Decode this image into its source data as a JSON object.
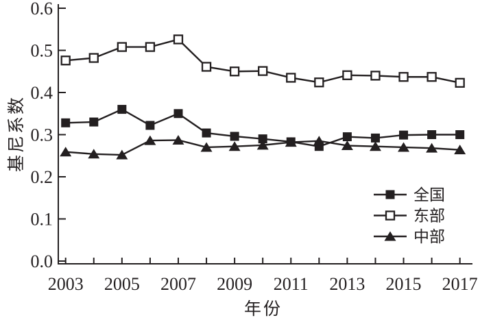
{
  "figure": {
    "background": "#ffffff",
    "line_color": "#231f20",
    "marker_fill": "#231f20",
    "open_marker_fill": "#ffffff"
  },
  "chart_data": {
    "type": "line",
    "title": "",
    "xlabel": "年份",
    "ylabel": "基尼系数",
    "xlim": [
      2003,
      2017
    ],
    "ylim": [
      0.0,
      0.6
    ],
    "grid": false,
    "legend_position": "inside lower-right",
    "x": [
      2003,
      2004,
      2005,
      2006,
      2007,
      2008,
      2009,
      2010,
      2011,
      2012,
      2013,
      2014,
      2015,
      2016,
      2017
    ],
    "xtick_label_years": [
      2003,
      2005,
      2007,
      2009,
      2011,
      2013,
      2015,
      2017
    ],
    "xtick_labels": [
      "2003",
      "2005",
      "2007",
      "2009",
      "2011",
      "2013",
      "2015",
      "2017"
    ],
    "yticks": [
      0.0,
      0.1,
      0.2,
      0.3,
      0.4,
      0.5,
      0.6
    ],
    "ytick_labels": [
      "0.0",
      "0.1",
      "0.2",
      "0.3",
      "0.4",
      "0.5",
      "0.6"
    ],
    "series": [
      {
        "id": "national",
        "name": "全国",
        "marker": "filled-square",
        "values": [
          0.328,
          0.33,
          0.36,
          0.322,
          0.35,
          0.304,
          0.296,
          0.29,
          0.283,
          0.272,
          0.295,
          0.292,
          0.299,
          0.3,
          0.3
        ]
      },
      {
        "id": "east",
        "name": "东部",
        "marker": "open-square",
        "values": [
          0.476,
          0.482,
          0.508,
          0.508,
          0.526,
          0.461,
          0.45,
          0.451,
          0.435,
          0.424,
          0.441,
          0.44,
          0.437,
          0.437,
          0.423
        ]
      },
      {
        "id": "central",
        "name": "中部",
        "marker": "filled-triangle",
        "values": [
          0.259,
          0.254,
          0.252,
          0.286,
          0.287,
          0.27,
          0.272,
          0.275,
          0.282,
          0.285,
          0.274,
          0.272,
          0.27,
          0.268,
          0.264
        ]
      }
    ]
  }
}
